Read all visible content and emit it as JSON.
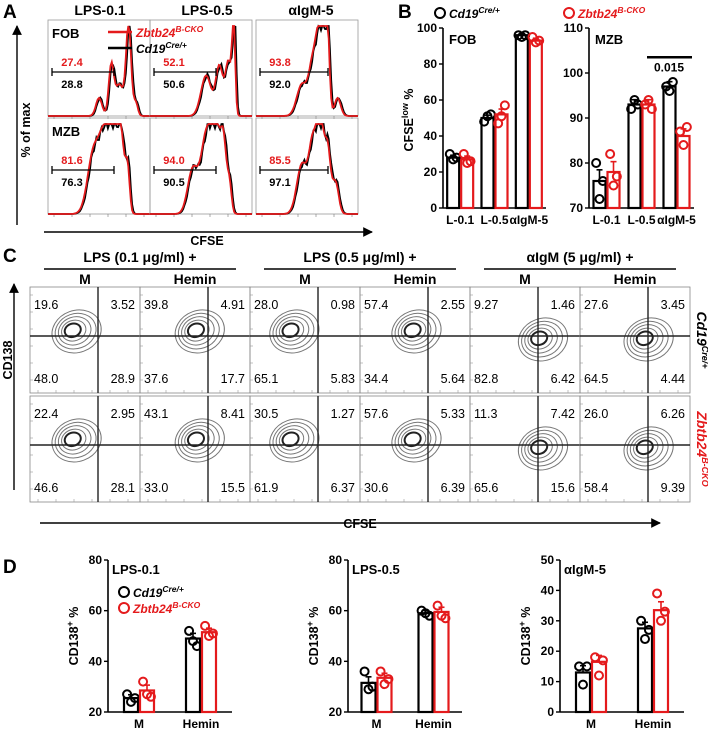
{
  "colors": {
    "control": "#000000",
    "cko": "#e41a1c"
  },
  "panelA": {
    "letter": "A",
    "columns": [
      "LPS-0.1",
      "LPS-0.5",
      "αIgM-5"
    ],
    "rows": [
      "FOB",
      "MZB"
    ],
    "ylabel": "% of max",
    "xlabel": "CFSE",
    "legend": {
      "cko": "Zbtb24",
      "cko_sup": "B-CKO",
      "control": "Cd19",
      "control_sup": "Cre/+"
    },
    "gates": [
      [
        {
          "cko": "27.4",
          "control": "28.8"
        },
        {
          "cko": "52.1",
          "control": "50.6"
        },
        {
          "cko": "93.8",
          "control": "92.0"
        }
      ],
      [
        {
          "cko": "81.6",
          "control": "76.3"
        },
        {
          "cko": "94.0",
          "control": "90.5"
        },
        {
          "cko": "85.5",
          "control": "97.1"
        }
      ]
    ]
  },
  "panelB": {
    "letter": "B",
    "legend": {
      "control": "Cd19",
      "control_sup": "Cre/+",
      "cko": "Zbtb24",
      "cko_sup": "B-CKO"
    },
    "ylabel_main": "CFSE",
    "ylabel_sup": "low",
    "ylabel_end": " %"
  },
  "panelC": {
    "letter": "C",
    "groups": [
      "LPS (0.1 μg/ml) +",
      "LPS (0.5 μg/ml) +",
      "αIgM (5 μg/ml) +"
    ],
    "subcols": [
      "M",
      "Hemin",
      "M",
      "Hemin",
      "M",
      "Hemin"
    ],
    "ylabel": "CD138",
    "xlabel": "CFSE",
    "row_labels": [
      {
        "main": "Cd19",
        "sup": "Cre/+"
      },
      {
        "main": "Zbtb24",
        "sup": "B-CKO"
      }
    ],
    "quadrants": [
      [
        [
          "19.6",
          "3.52",
          "48.0",
          "28.9"
        ],
        [
          "39.8",
          "4.91",
          "37.6",
          "17.7"
        ],
        [
          "28.0",
          "0.98",
          "65.1",
          "5.83"
        ],
        [
          "57.4",
          "2.55",
          "34.4",
          "5.64"
        ],
        [
          "9.27",
          "1.46",
          "82.8",
          "6.42"
        ],
        [
          "27.6",
          "3.45",
          "64.5",
          "4.44"
        ]
      ],
      [
        [
          "22.4",
          "2.95",
          "46.6",
          "28.1"
        ],
        [
          "43.1",
          "8.41",
          "33.0",
          "15.5"
        ],
        [
          "30.5",
          "1.27",
          "61.9",
          "6.37"
        ],
        [
          "57.6",
          "5.33",
          "30.6",
          "6.39"
        ],
        [
          "11.3",
          "7.42",
          "65.6",
          "15.6"
        ],
        [
          "26.0",
          "6.26",
          "58.4",
          "9.39"
        ]
      ]
    ]
  },
  "panelD": {
    "letter": "D",
    "legend": {
      "control": "Cd19",
      "control_sup": "Cre/+",
      "cko": "Zbtb24",
      "cko_sup": "B-CKO"
    },
    "ylabel_main": "CD138",
    "ylabel_sup": "+",
    "ylabel_end": " %"
  },
  "chart_data": [
    {
      "type": "bar",
      "panel": "B",
      "title": "FOB",
      "categories": [
        "L-0.1",
        "L-0.5",
        "αIgM-5"
      ],
      "series": [
        {
          "name": "Cd19Cre/+",
          "values": [
            28,
            50,
            96
          ],
          "points": [
            [
              30,
              27,
              28
            ],
            [
              48,
              51,
              52
            ],
            [
              96,
              95,
              96
            ]
          ]
        },
        {
          "name": "Zbtb24B-CKO",
          "values": [
            27,
            52,
            93
          ],
          "points": [
            [
              30,
              25,
              26
            ],
            [
              47,
              51,
              57
            ],
            [
              95,
              92,
              93
            ]
          ]
        }
      ],
      "ylim": [
        0,
        100
      ],
      "yticks": [
        0,
        20,
        40,
        60,
        80,
        100
      ],
      "annotation": ""
    },
    {
      "type": "bar",
      "panel": "B",
      "title": "MZB",
      "categories": [
        "L-0.1",
        "L-0.5",
        "αIgM-5"
      ],
      "series": [
        {
          "name": "Cd19Cre/+",
          "values": [
            76,
            93,
            97
          ],
          "points": [
            [
              80,
              72,
              76
            ],
            [
              92,
              94,
              93
            ],
            [
              97,
              96,
              98
            ]
          ]
        },
        {
          "name": "Zbtb24B-CKO",
          "values": [
            78,
            93,
            86
          ],
          "points": [
            [
              82,
              75,
              77
            ],
            [
              93,
              94,
              92
            ],
            [
              87,
              84,
              88
            ]
          ]
        }
      ],
      "ylim": [
        70,
        110
      ],
      "yticks": [
        70,
        80,
        90,
        100,
        110
      ],
      "annotation": "0.015"
    },
    {
      "type": "bar",
      "panel": "D",
      "title": "LPS-0.1",
      "categories": [
        "M",
        "Hemin"
      ],
      "series": [
        {
          "name": "Cd19Cre/+",
          "values": [
            25.5,
            49
          ],
          "points": [
            [
              27,
              24,
              25.5
            ],
            [
              52,
              48,
              46
            ]
          ]
        },
        {
          "name": "Zbtb24B-CKO",
          "values": [
            28.5,
            51.5
          ],
          "points": [
            [
              32,
              27,
              26
            ],
            [
              54,
              50,
              51
            ]
          ]
        }
      ],
      "ylim": [
        20,
        80
      ],
      "yticks": [
        20,
        40,
        60,
        80
      ]
    },
    {
      "type": "bar",
      "panel": "D",
      "title": "LPS-0.5",
      "categories": [
        "M",
        "Hemin"
      ],
      "series": [
        {
          "name": "Cd19Cre/+",
          "values": [
            31.5,
            59
          ],
          "points": [
            [
              36,
              29,
              30
            ],
            [
              60,
              59,
              58
            ]
          ]
        },
        {
          "name": "Zbtb24B-CKO",
          "values": [
            33.5,
            59.5
          ],
          "points": [
            [
              36,
              31,
              33
            ],
            [
              62,
              58,
              57
            ]
          ]
        }
      ],
      "ylim": [
        20,
        80
      ],
      "yticks": [
        20,
        40,
        60,
        80
      ]
    },
    {
      "type": "bar",
      "panel": "D",
      "title": "αIgM-5",
      "categories": [
        "M",
        "Hemin"
      ],
      "series": [
        {
          "name": "Cd19Cre/+",
          "values": [
            13,
            27.5
          ],
          "points": [
            [
              15,
              9,
              15
            ],
            [
              30,
              24,
              27
            ]
          ]
        },
        {
          "name": "Zbtb24B-CKO",
          "values": [
            16.5,
            33.5
          ],
          "points": [
            [
              18,
              12,
              17
            ],
            [
              39,
              30,
              33
            ]
          ]
        }
      ],
      "ylim": [
        0,
        50
      ],
      "yticks": [
        0,
        10,
        20,
        30,
        40,
        50
      ]
    }
  ]
}
